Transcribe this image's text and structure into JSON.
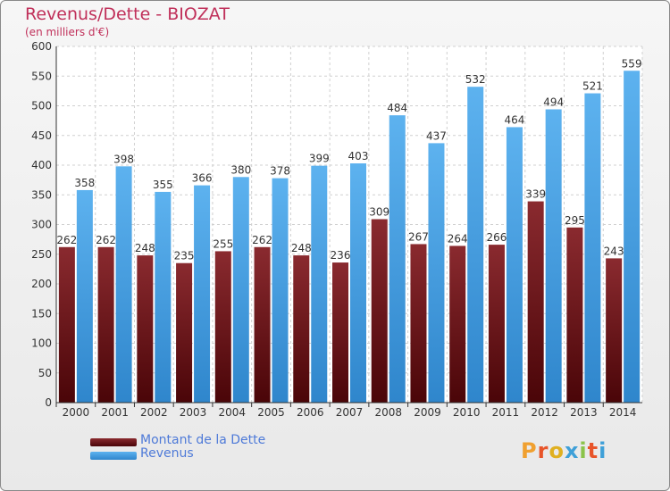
{
  "title": "Revenus/Dette - BIOZAT",
  "subtitle": "(en milliers d'€)",
  "colors": {
    "dette": "#6b1016",
    "revenus": "#4da6e6",
    "title": "#c0305a",
    "legend_text": "#4e7ad8"
  },
  "legend": [
    {
      "label": "Montant de la Dette",
      "color": "#6b1016"
    },
    {
      "label": "Revenus",
      "color": "#4da6e6"
    }
  ],
  "logo": {
    "text": "Proxiti"
  },
  "chart_data": {
    "type": "bar",
    "title": "Revenus/Dette - BIOZAT",
    "subtitle": "(en milliers d'€)",
    "categories": [
      "2000",
      "2001",
      "2002",
      "2003",
      "2004",
      "2005",
      "2006",
      "2007",
      "2008",
      "2009",
      "2010",
      "2011",
      "2012",
      "2013",
      "2014"
    ],
    "series": [
      {
        "name": "Montant de la Dette",
        "values": [
          262,
          262,
          248,
          235,
          255,
          262,
          248,
          236,
          309,
          267,
          264,
          266,
          339,
          295,
          243
        ]
      },
      {
        "name": "Revenus",
        "values": [
          358,
          398,
          355,
          366,
          380,
          378,
          399,
          403,
          484,
          437,
          532,
          464,
          494,
          521,
          559
        ]
      }
    ],
    "ylim": [
      0,
      600
    ],
    "yticks": [
      0,
      50,
      100,
      150,
      200,
      250,
      300,
      350,
      400,
      450,
      500,
      550,
      600
    ],
    "grid": true,
    "legend_position": "bottom-left"
  }
}
